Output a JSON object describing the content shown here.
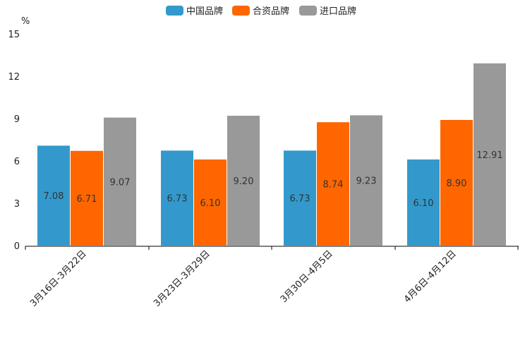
{
  "chart_data": {
    "type": "bar",
    "title": "",
    "unit_label": "%",
    "xlabel": "",
    "ylabel": "%",
    "ylim": [
      0,
      15
    ],
    "yticks": [
      0,
      3,
      6,
      9,
      12,
      15
    ],
    "grid": false,
    "legend_position": "top-center",
    "categories": [
      "3月16日-3月22日",
      "3月23日-3月29日",
      "3月30日-4月5日",
      "4月6日-4月12日"
    ],
    "series": [
      {
        "name": "中国品牌",
        "color": "#3399cc",
        "values": [
          7.08,
          6.73,
          6.73,
          6.1
        ],
        "labels": [
          "7.08",
          "6.73",
          "6.73",
          "6.10"
        ]
      },
      {
        "name": "合资品牌",
        "color": "#ff6600",
        "values": [
          6.71,
          6.1,
          8.74,
          8.9
        ],
        "labels": [
          "6.71",
          "6.10",
          "8.74",
          "8.90"
        ]
      },
      {
        "name": "进口品牌",
        "color": "#999999",
        "values": [
          9.07,
          9.2,
          9.23,
          12.91
        ],
        "labels": [
          "9.07",
          "9.20",
          "9.23",
          "12.91"
        ]
      }
    ]
  }
}
